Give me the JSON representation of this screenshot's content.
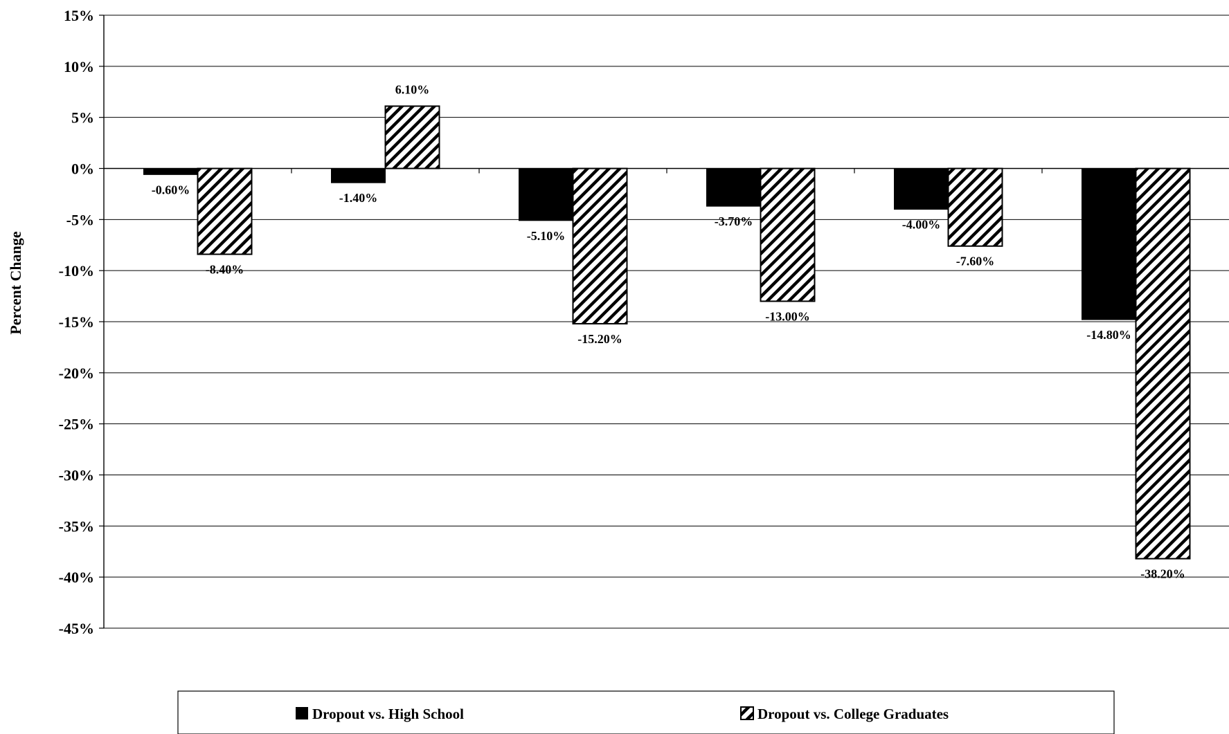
{
  "chart_data": {
    "type": "bar",
    "ylabel": "Percent Change",
    "ylim": [
      -45,
      15
    ],
    "yticks": [
      "15%",
      "10%",
      "5%",
      "0%",
      "-5%",
      "-10%",
      "-15%",
      "-20%",
      "-25%",
      "-30%",
      "-35%",
      "-40%",
      "-45%"
    ],
    "category_count": 6,
    "grid": true,
    "legend_position": "bottom",
    "series": [
      {
        "name": "Dropout vs. High School",
        "fill": "solid",
        "color": "#000000",
        "values": [
          -0.6,
          -1.4,
          -5.1,
          -3.7,
          -4.0,
          -14.8
        ],
        "labels": [
          "-0.60%",
          "-1.40%",
          "-5.10%",
          "-3.70%",
          "-4.00%",
          "-14.80%"
        ]
      },
      {
        "name": "Dropout vs. College Graduates",
        "fill": "hatched",
        "color": "#000000",
        "values": [
          -8.4,
          6.1,
          -15.2,
          -13.0,
          -7.6,
          -38.2
        ],
        "labels": [
          "-8.40%",
          "6.10%",
          "-15.20%",
          "-13.00%",
          "-7.60%",
          "-38.20%"
        ]
      }
    ]
  }
}
